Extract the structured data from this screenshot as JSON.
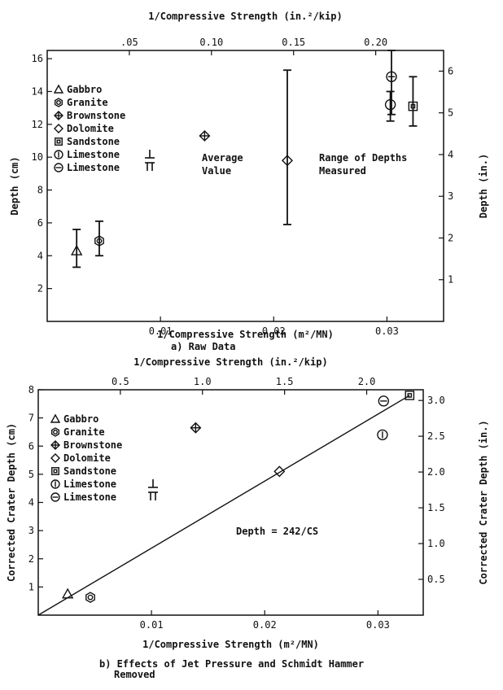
{
  "figure": {
    "caption_a": "a)  Raw Data",
    "caption_b_line1": "b) Effects of Jet Pressure and Schmidt Hammer",
    "caption_b_line2": "Removed"
  },
  "legend_labels": [
    "Gabbro",
    "Granite",
    "Brownstone",
    "Dolomite",
    "Sandstone",
    "Limestone",
    "Limestone"
  ],
  "chart_data": [
    {
      "type": "scatter",
      "xlabel": "1/Compressive Strength (m²/MN)",
      "x2label": "1/Compressive Strength (in.²/kip)",
      "ylabel": "Depth (cm)",
      "y2label": "Depth (in.)",
      "xlim": [
        0,
        0.035
      ],
      "ylim": [
        0,
        16.5
      ],
      "x_ticks": [
        0.01,
        0.02,
        0.03
      ],
      "x_tick_labels": [
        "0.01",
        "0.02",
        "0.03"
      ],
      "y_ticks": [
        2,
        4,
        6,
        8,
        10,
        12,
        14,
        16
      ],
      "y_tick_labels": [
        "2",
        "4",
        "6",
        "8",
        "10",
        "12",
        "14",
        "16"
      ],
      "x2_ticks": [
        0.05,
        0.1,
        0.15,
        0.2
      ],
      "x2_tick_labels": [
        ".05",
        "0.10",
        "0.15",
        "0.20"
      ],
      "y2_ticks": [
        1,
        2,
        3,
        4,
        5,
        6
      ],
      "y2_tick_labels": [
        "1",
        "2",
        "3",
        "4",
        "5",
        "6"
      ],
      "legend_position": "top-left",
      "annotations": [
        "Average",
        "Value",
        "Range of Depths",
        "Measured"
      ],
      "points": [
        {
          "rock": "Gabbro",
          "marker": "triangle",
          "x": 0.0026,
          "y": 4.3,
          "ymin": 3.3,
          "ymax": 5.6
        },
        {
          "rock": "Granite",
          "marker": "hexagon",
          "x": 0.0046,
          "y": 4.9,
          "ymin": 4.0,
          "ymax": 6.1
        },
        {
          "rock": "Brownstone",
          "marker": "cross-diamond",
          "x": 0.0139,
          "y": 11.3
        },
        {
          "rock": "Dolomite",
          "marker": "diamond",
          "x": 0.0212,
          "y": 9.8,
          "ymin": 5.9,
          "ymax": 15.3
        },
        {
          "rock": "Limestone",
          "marker": "circle-vertical",
          "x": 0.0303,
          "y": 13.2,
          "ymin": 12.2,
          "ymax": 14.0
        },
        {
          "rock": "Limestone",
          "marker": "circle-horizontal",
          "x": 0.0304,
          "y": 14.9,
          "ymin": 12.6,
          "ymax": 16.5
        },
        {
          "rock": "Sandstone",
          "marker": "square",
          "x": 0.0323,
          "y": 13.1,
          "ymin": 11.9,
          "ymax": 14.9
        }
      ]
    },
    {
      "type": "scatter",
      "xlabel": "1/Compressive Strength (m²/MN)",
      "x2label": "1/Compressive Strength (in.²/kip)",
      "ylabel": "Corrected Crater Depth (cm)",
      "y2label": "Corrected Crater Depth (in.)",
      "xlim": [
        0,
        0.034
      ],
      "ylim": [
        0,
        8
      ],
      "x_ticks": [
        0.01,
        0.02,
        0.03
      ],
      "x_tick_labels": [
        "0.01",
        "0.02",
        "0.03"
      ],
      "y_ticks": [
        1,
        2,
        3,
        4,
        5,
        6,
        7,
        8
      ],
      "y_tick_labels": [
        "1",
        "2",
        "3",
        "4",
        "5",
        "6",
        "7",
        "8"
      ],
      "x2_ticks": [
        0.5,
        1.0,
        1.5,
        2.0
      ],
      "x2_tick_labels": [
        "0.5",
        "1.0",
        "1.5",
        "2.0"
      ],
      "y2_ticks": [
        0.5,
        1.0,
        1.5,
        2.0,
        2.5,
        3.0
      ],
      "y2_tick_labels": [
        "0.5",
        "1.0",
        "1.5",
        "2.0",
        "2.5",
        "3.0"
      ],
      "legend_position": "top-left",
      "fit_label": "Depth = 242/CS",
      "fit_line": {
        "x": [
          0,
          0.0328
        ],
        "y": [
          0,
          7.8
        ]
      },
      "points": [
        {
          "rock": "Gabbro",
          "marker": "triangle",
          "x": 0.0026,
          "y": 0.75
        },
        {
          "rock": "Granite",
          "marker": "hexagon",
          "x": 0.0046,
          "y": 0.63
        },
        {
          "rock": "Brownstone",
          "marker": "cross-diamond",
          "x": 0.0139,
          "y": 6.65
        },
        {
          "rock": "Dolomite",
          "marker": "diamond",
          "x": 0.0213,
          "y": 5.1
        },
        {
          "rock": "Limestone",
          "marker": "circle-vertical",
          "x": 0.0304,
          "y": 6.4
        },
        {
          "rock": "Limestone",
          "marker": "circle-horizontal",
          "x": 0.0305,
          "y": 7.6
        },
        {
          "rock": "Sandstone",
          "marker": "square",
          "x": 0.0328,
          "y": 7.8
        }
      ]
    }
  ]
}
